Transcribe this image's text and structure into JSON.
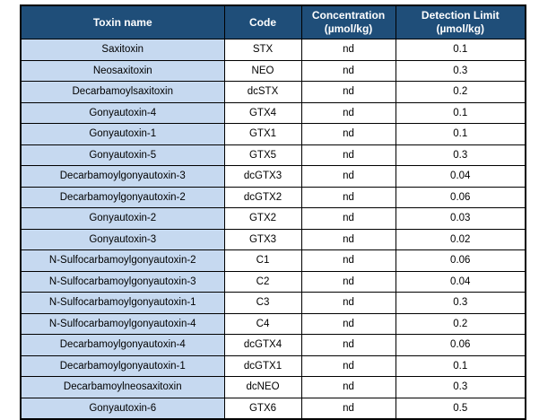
{
  "colors": {
    "header_bg": "#1F4E79",
    "header_text": "#FFFFFF",
    "name_cell_bg": "#C6D9F0",
    "border": "#000000",
    "page_bg": "#FFFFFF"
  },
  "table": {
    "columns": [
      {
        "label": "Toxin name"
      },
      {
        "label": "Code"
      },
      {
        "label": "Concentration\n(µmol/kg)"
      },
      {
        "label": "Detection Limit\n(µmol/kg)"
      }
    ],
    "rows": [
      {
        "name": "Saxitoxin",
        "code": "STX",
        "concentration": "nd",
        "detection_limit": "0.1"
      },
      {
        "name": "Neosaxitoxin",
        "code": "NEO",
        "concentration": "nd",
        "detection_limit": "0.3"
      },
      {
        "name": "Decarbamoylsaxitoxin",
        "code": "dcSTX",
        "concentration": "nd",
        "detection_limit": "0.2"
      },
      {
        "name": "Gonyautoxin-4",
        "code": "GTX4",
        "concentration": "nd",
        "detection_limit": "0.1"
      },
      {
        "name": "Gonyautoxin-1",
        "code": "GTX1",
        "concentration": "nd",
        "detection_limit": "0.1"
      },
      {
        "name": "Gonyautoxin-5",
        "code": "GTX5",
        "concentration": "nd",
        "detection_limit": "0.3"
      },
      {
        "name": "Decarbamoylgonyautoxin-3",
        "code": "dcGTX3",
        "concentration": "nd",
        "detection_limit": "0.04"
      },
      {
        "name": "Decarbamoylgonyautoxin-2",
        "code": "dcGTX2",
        "concentration": "nd",
        "detection_limit": "0.06"
      },
      {
        "name": "Gonyautoxin-2",
        "code": "GTX2",
        "concentration": "nd",
        "detection_limit": "0.03"
      },
      {
        "name": "Gonyautoxin-3",
        "code": "GTX3",
        "concentration": "nd",
        "detection_limit": "0.02"
      },
      {
        "name": "N-Sulfocarbamoylgonyautoxin-2",
        "code": "C1",
        "concentration": "nd",
        "detection_limit": "0.06"
      },
      {
        "name": "N-Sulfocarbamoylgonyautoxin-3",
        "code": "C2",
        "concentration": "nd",
        "detection_limit": "0.04"
      },
      {
        "name": "N-Sulfocarbamoylgonyautoxin-1",
        "code": "C3",
        "concentration": "nd",
        "detection_limit": "0.3"
      },
      {
        "name": "N-Sulfocarbamoylgonyautoxin-4",
        "code": "C4",
        "concentration": "nd",
        "detection_limit": "0.2"
      },
      {
        "name": "Decarbamoylgonyautoxin-4",
        "code": "dcGTX4",
        "concentration": "nd",
        "detection_limit": "0.06"
      },
      {
        "name": "Decarbamoylgonyautoxin-1",
        "code": "dcGTX1",
        "concentration": "nd",
        "detection_limit": "0.1"
      },
      {
        "name": "Decarbamoylneosaxitoxin",
        "code": "dcNEO",
        "concentration": "nd",
        "detection_limit": "0.3"
      },
      {
        "name": "Gonyautoxin-6",
        "code": "GTX6",
        "concentration": "nd",
        "detection_limit": "0.5"
      }
    ]
  }
}
